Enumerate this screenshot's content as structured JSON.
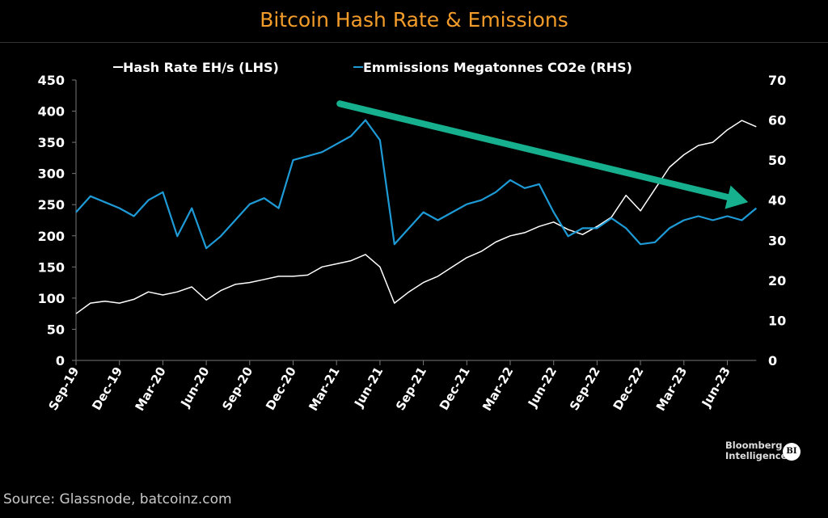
{
  "title": "Bitcoin Hash Rate & Emissions",
  "source": "Source: Glassnode, batcoinz.com",
  "logo": {
    "line1": "Bloomberg",
    "line2": "Intelligence",
    "badge": "BI"
  },
  "chart_data": {
    "type": "line",
    "title": "Bitcoin Hash Rate & Emissions",
    "x_tick_labels": [
      "Sep-19",
      "Dec-19",
      "Mar-20",
      "Jun-20",
      "Sep-20",
      "Dec-20",
      "Mar-21",
      "Jun-21",
      "Sep-21",
      "Dec-21",
      "Mar-22",
      "Jun-22",
      "Sep-22",
      "Dec-22",
      "Mar-23",
      "Jun-23"
    ],
    "x": [
      "Sep-19",
      "Oct-19",
      "Nov-19",
      "Dec-19",
      "Jan-20",
      "Feb-20",
      "Mar-20",
      "Apr-20",
      "May-20",
      "Jun-20",
      "Jul-20",
      "Aug-20",
      "Sep-20",
      "Oct-20",
      "Nov-20",
      "Dec-20",
      "Jan-21",
      "Feb-21",
      "Mar-21",
      "Apr-21",
      "May-21",
      "Jun-21",
      "Jul-21",
      "Aug-21",
      "Sep-21",
      "Oct-21",
      "Nov-21",
      "Dec-21",
      "Jan-22",
      "Feb-22",
      "Mar-22",
      "Apr-22",
      "May-22",
      "Jun-22",
      "Jul-22",
      "Aug-22",
      "Sep-22",
      "Oct-22",
      "Nov-22",
      "Dec-22",
      "Jan-23",
      "Feb-23",
      "Mar-23",
      "Apr-23",
      "May-23",
      "Jun-23",
      "Jul-23",
      "Aug-23"
    ],
    "left_axis": {
      "ylim": [
        0,
        450
      ],
      "ticks": [
        0,
        50,
        100,
        150,
        200,
        250,
        300,
        350,
        400,
        450
      ]
    },
    "right_axis": {
      "ylim": [
        0,
        70
      ],
      "ticks": [
        0,
        10,
        20,
        30,
        40,
        50,
        60,
        70
      ]
    },
    "series": [
      {
        "name": "Hash Rate EH/s (LHS)",
        "axis": "left",
        "color": "#ffffff",
        "values": [
          75,
          92,
          95,
          92,
          98,
          110,
          105,
          110,
          118,
          97,
          112,
          122,
          125,
          130,
          135,
          135,
          137,
          150,
          155,
          160,
          170,
          150,
          92,
          110,
          125,
          135,
          150,
          165,
          175,
          190,
          200,
          205,
          215,
          222,
          210,
          202,
          215,
          230,
          265,
          240,
          275,
          310,
          330,
          345,
          350,
          370,
          385,
          375
        ]
      },
      {
        "name": "Emmissions Megatonnes CO2e (RHS)",
        "axis": "right",
        "color": "#1e9bd7",
        "values": [
          37,
          41,
          39.5,
          38,
          36,
          40,
          42,
          31,
          38,
          28,
          31,
          35,
          39,
          40.5,
          38,
          50,
          51,
          52,
          54,
          56,
          60,
          55,
          29,
          33,
          37,
          35,
          37,
          39,
          40,
          42,
          45,
          43,
          44,
          37,
          31,
          33,
          33,
          35.5,
          33,
          29,
          29.5,
          33,
          35,
          36,
          35,
          36,
          35,
          38
        ]
      }
    ],
    "legend": {
      "placement": "top-center"
    },
    "grid": false,
    "annotation": {
      "type": "arrow",
      "color": "#16b08e",
      "from": {
        "x": "Mar-21",
        "left_value": 412
      },
      "to": {
        "x": "Aug-23",
        "left_value": 254
      }
    }
  }
}
